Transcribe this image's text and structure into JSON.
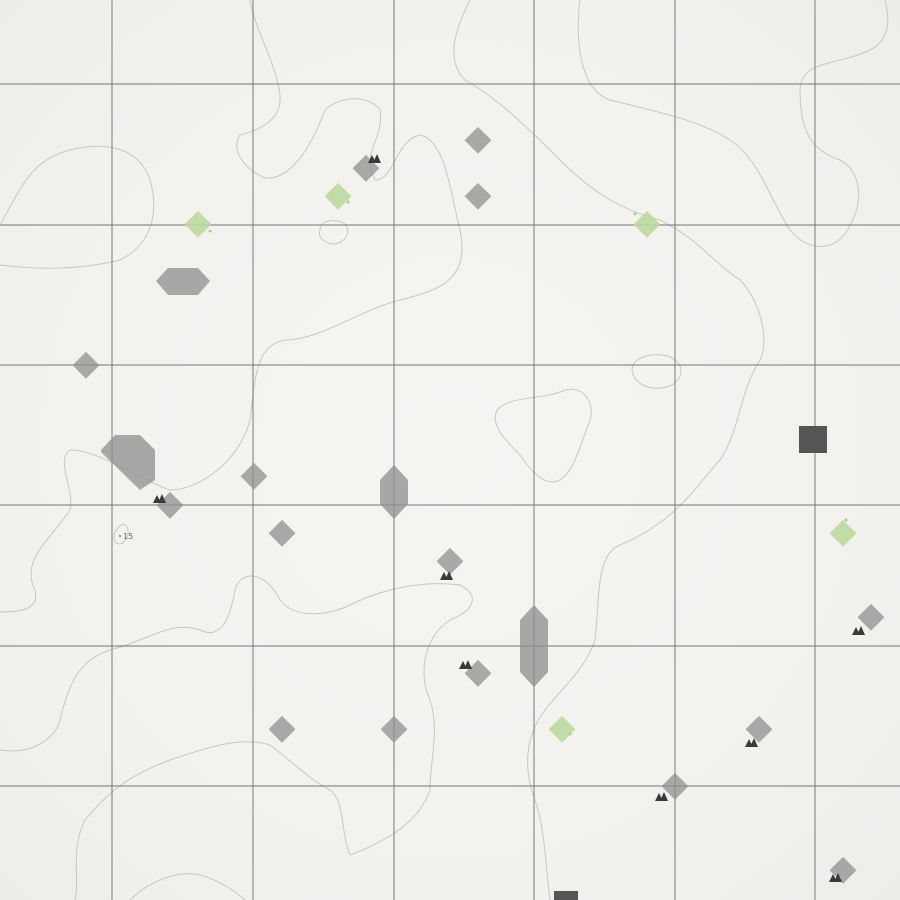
{
  "map": {
    "elevation_label": "15",
    "colors": {
      "background": "#f6f4f1",
      "grid": "#6e6e6e",
      "contour": "#c9c6c3",
      "marker_gray": "#8f8f8f",
      "marker_green": "#bcd9a0",
      "peak": "#3a3a3a",
      "building": "#555555"
    }
  }
}
